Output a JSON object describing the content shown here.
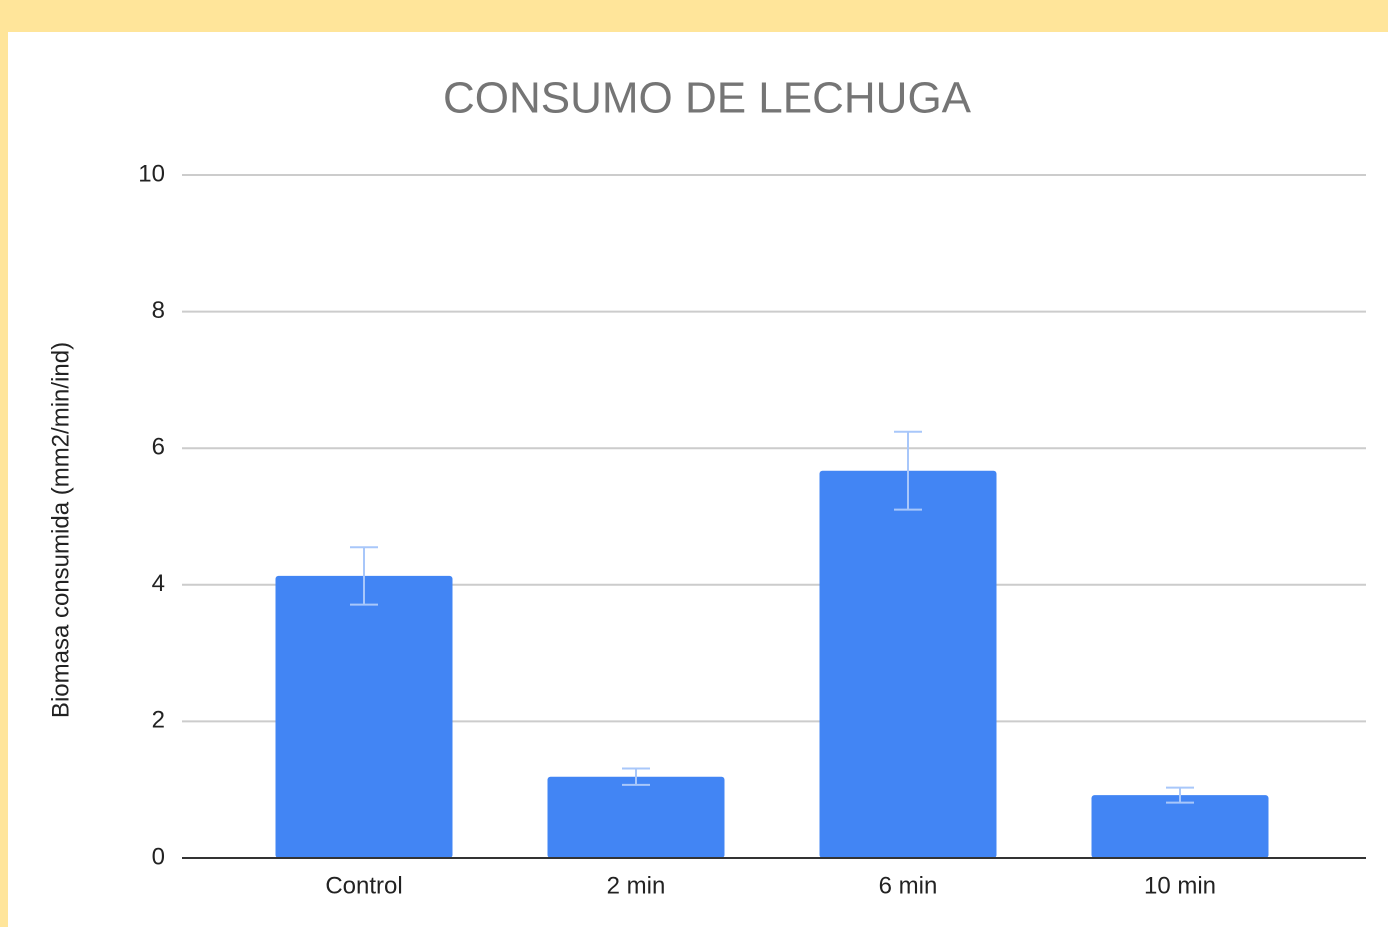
{
  "chart_data": {
    "type": "bar",
    "title": "CONSUMO DE LECHUGA",
    "y_label": "Biomasa consumida (mm2/min/ind)",
    "categories": [
      "Control",
      "2 min",
      "6 min",
      "10 min"
    ],
    "values": [
      4.13,
      1.19,
      5.67,
      0.92
    ],
    "errors": [
      0.42,
      0.12,
      0.57,
      0.11
    ],
    "color": "#4285f4",
    "error_color": "#a8c7fa",
    "ylim": [
      0,
      10
    ],
    "yticks": [
      0,
      2,
      4,
      6,
      8,
      10
    ],
    "grid": true
  }
}
